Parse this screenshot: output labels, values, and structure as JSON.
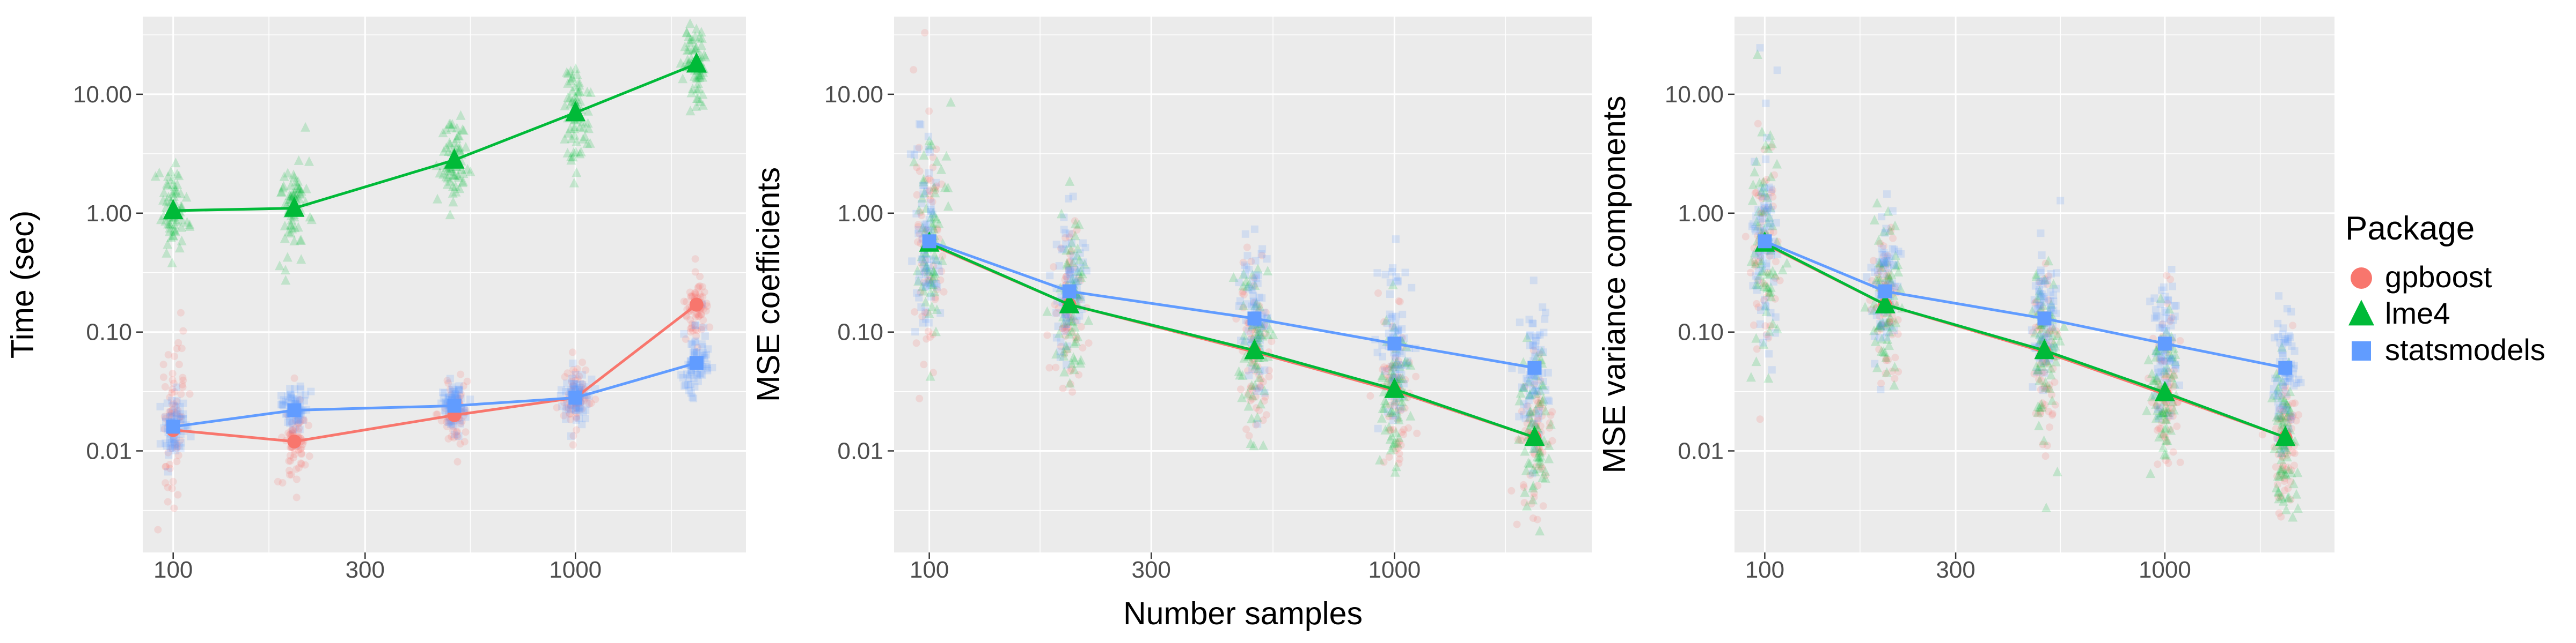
{
  "palette": {
    "gpboost": "#F8766D",
    "lme4": "#00BA38",
    "statsmodels": "#619CFF",
    "panel_bg": "#EBEBEB",
    "grid": "#FFFFFF",
    "tick_text": "#4D4D4D",
    "title_text": "#000000"
  },
  "legend": {
    "title": "Package",
    "items": [
      {
        "label": "gpboost",
        "shape": "circle"
      },
      {
        "label": "lme4",
        "shape": "triangle"
      },
      {
        "label": "statsmodels",
        "shape": "square"
      }
    ]
  },
  "x_axis": {
    "title": "Number samples",
    "ticks": [
      100,
      300,
      1000
    ],
    "tick_labels": [
      "100",
      "300",
      "1000"
    ],
    "minor_ticks": [
      173,
      548,
      1732
    ],
    "domain": [
      84,
      2655
    ],
    "scale": "log10"
  },
  "y_axis": {
    "ticks": [
      0.01,
      0.1,
      1,
      10
    ],
    "tick_labels": [
      "0.01",
      "0.10",
      "1.00",
      "10.00"
    ],
    "minor_ticks": [
      0.00316,
      0.0316,
      0.316,
      3.16,
      31.6
    ],
    "domain": [
      0.0014,
      45
    ],
    "scale": "log10"
  },
  "replicates_per_point": 70,
  "chart_data": [
    {
      "type": "scatter-line",
      "ylabel": "Time (sec)",
      "x": [
        100,
        200,
        500,
        1000,
        2000
      ],
      "series": [
        {
          "name": "gpboost",
          "shape": "circle",
          "means": [
            0.015,
            0.012,
            0.02,
            0.028,
            0.17
          ],
          "scatter_sd_log10": [
            0.45,
            0.18,
            0.15,
            0.13,
            0.12
          ]
        },
        {
          "name": "lme4",
          "shape": "triangle",
          "means": [
            1.05,
            1.1,
            2.8,
            7,
            18
          ],
          "scatter_sd_log10": [
            0.22,
            0.2,
            0.2,
            0.2,
            0.22
          ]
        },
        {
          "name": "statsmodels",
          "shape": "square",
          "means": [
            0.016,
            0.022,
            0.024,
            0.028,
            0.055
          ],
          "scatter_sd_log10": [
            0.12,
            0.1,
            0.1,
            0.1,
            0.15
          ]
        }
      ]
    },
    {
      "type": "scatter-line",
      "ylabel": "MSE coefficients",
      "x": [
        100,
        200,
        500,
        1000,
        2000
      ],
      "series": [
        {
          "name": "gpboost",
          "shape": "circle",
          "means": [
            0.55,
            0.17,
            0.068,
            0.032,
            0.013
          ],
          "scatter_sd_log10": [
            0.5,
            0.35,
            0.35,
            0.33,
            0.33
          ]
        },
        {
          "name": "lme4",
          "shape": "triangle",
          "means": [
            0.56,
            0.17,
            0.07,
            0.033,
            0.013
          ],
          "scatter_sd_log10": [
            0.5,
            0.35,
            0.35,
            0.33,
            0.35
          ]
        },
        {
          "name": "statsmodels",
          "shape": "square",
          "means": [
            0.58,
            0.22,
            0.13,
            0.08,
            0.05
          ],
          "scatter_sd_log10": [
            0.45,
            0.3,
            0.3,
            0.3,
            0.3
          ]
        }
      ]
    },
    {
      "type": "scatter-line",
      "ylabel": "MSE variance components",
      "x": [
        100,
        200,
        500,
        1000,
        2000
      ],
      "series": [
        {
          "name": "gpboost",
          "shape": "circle",
          "means": [
            0.55,
            0.17,
            0.068,
            0.03,
            0.013
          ],
          "scatter_sd_log10": [
            0.5,
            0.35,
            0.35,
            0.33,
            0.33
          ]
        },
        {
          "name": "lme4",
          "shape": "triangle",
          "means": [
            0.56,
            0.17,
            0.07,
            0.031,
            0.013
          ],
          "scatter_sd_log10": [
            0.5,
            0.35,
            0.35,
            0.33,
            0.35
          ]
        },
        {
          "name": "statsmodels",
          "shape": "square",
          "means": [
            0.58,
            0.22,
            0.13,
            0.08,
            0.05
          ],
          "scatter_sd_log10": [
            0.45,
            0.3,
            0.3,
            0.3,
            0.3
          ]
        }
      ]
    }
  ]
}
